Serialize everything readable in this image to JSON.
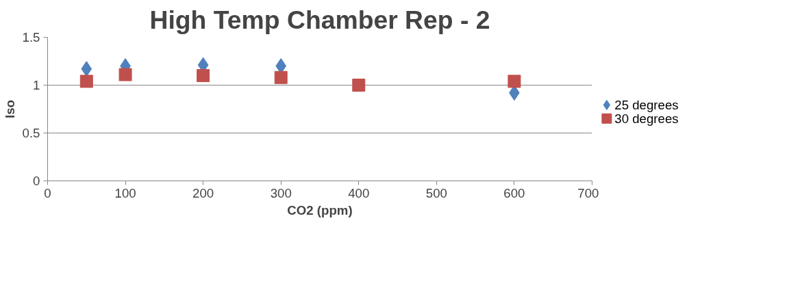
{
  "chart_data": {
    "type": "scatter",
    "title": "High Temp Chamber Rep - 2",
    "xlabel": "CO2 (ppm)",
    "ylabel": "Iso",
    "x": [
      50,
      100,
      200,
      300,
      400,
      600
    ],
    "series": [
      {
        "name": "25 degrees",
        "color": "#4f81bd",
        "marker": "diamond",
        "values": [
          1.17,
          1.2,
          1.21,
          1.2,
          null,
          0.92
        ]
      },
      {
        "name": "30 degrees",
        "color": "#c0504d",
        "marker": "square",
        "values": [
          1.04,
          1.11,
          1.1,
          1.08,
          1.0,
          1.04
        ]
      }
    ],
    "xlim": [
      0,
      700
    ],
    "xticks": [
      0,
      100,
      200,
      300,
      400,
      500,
      600,
      700
    ],
    "ylim": [
      0,
      1.5
    ],
    "yticks": [
      0,
      0.5,
      1,
      1.5
    ],
    "grid": "y",
    "legend": "right"
  }
}
